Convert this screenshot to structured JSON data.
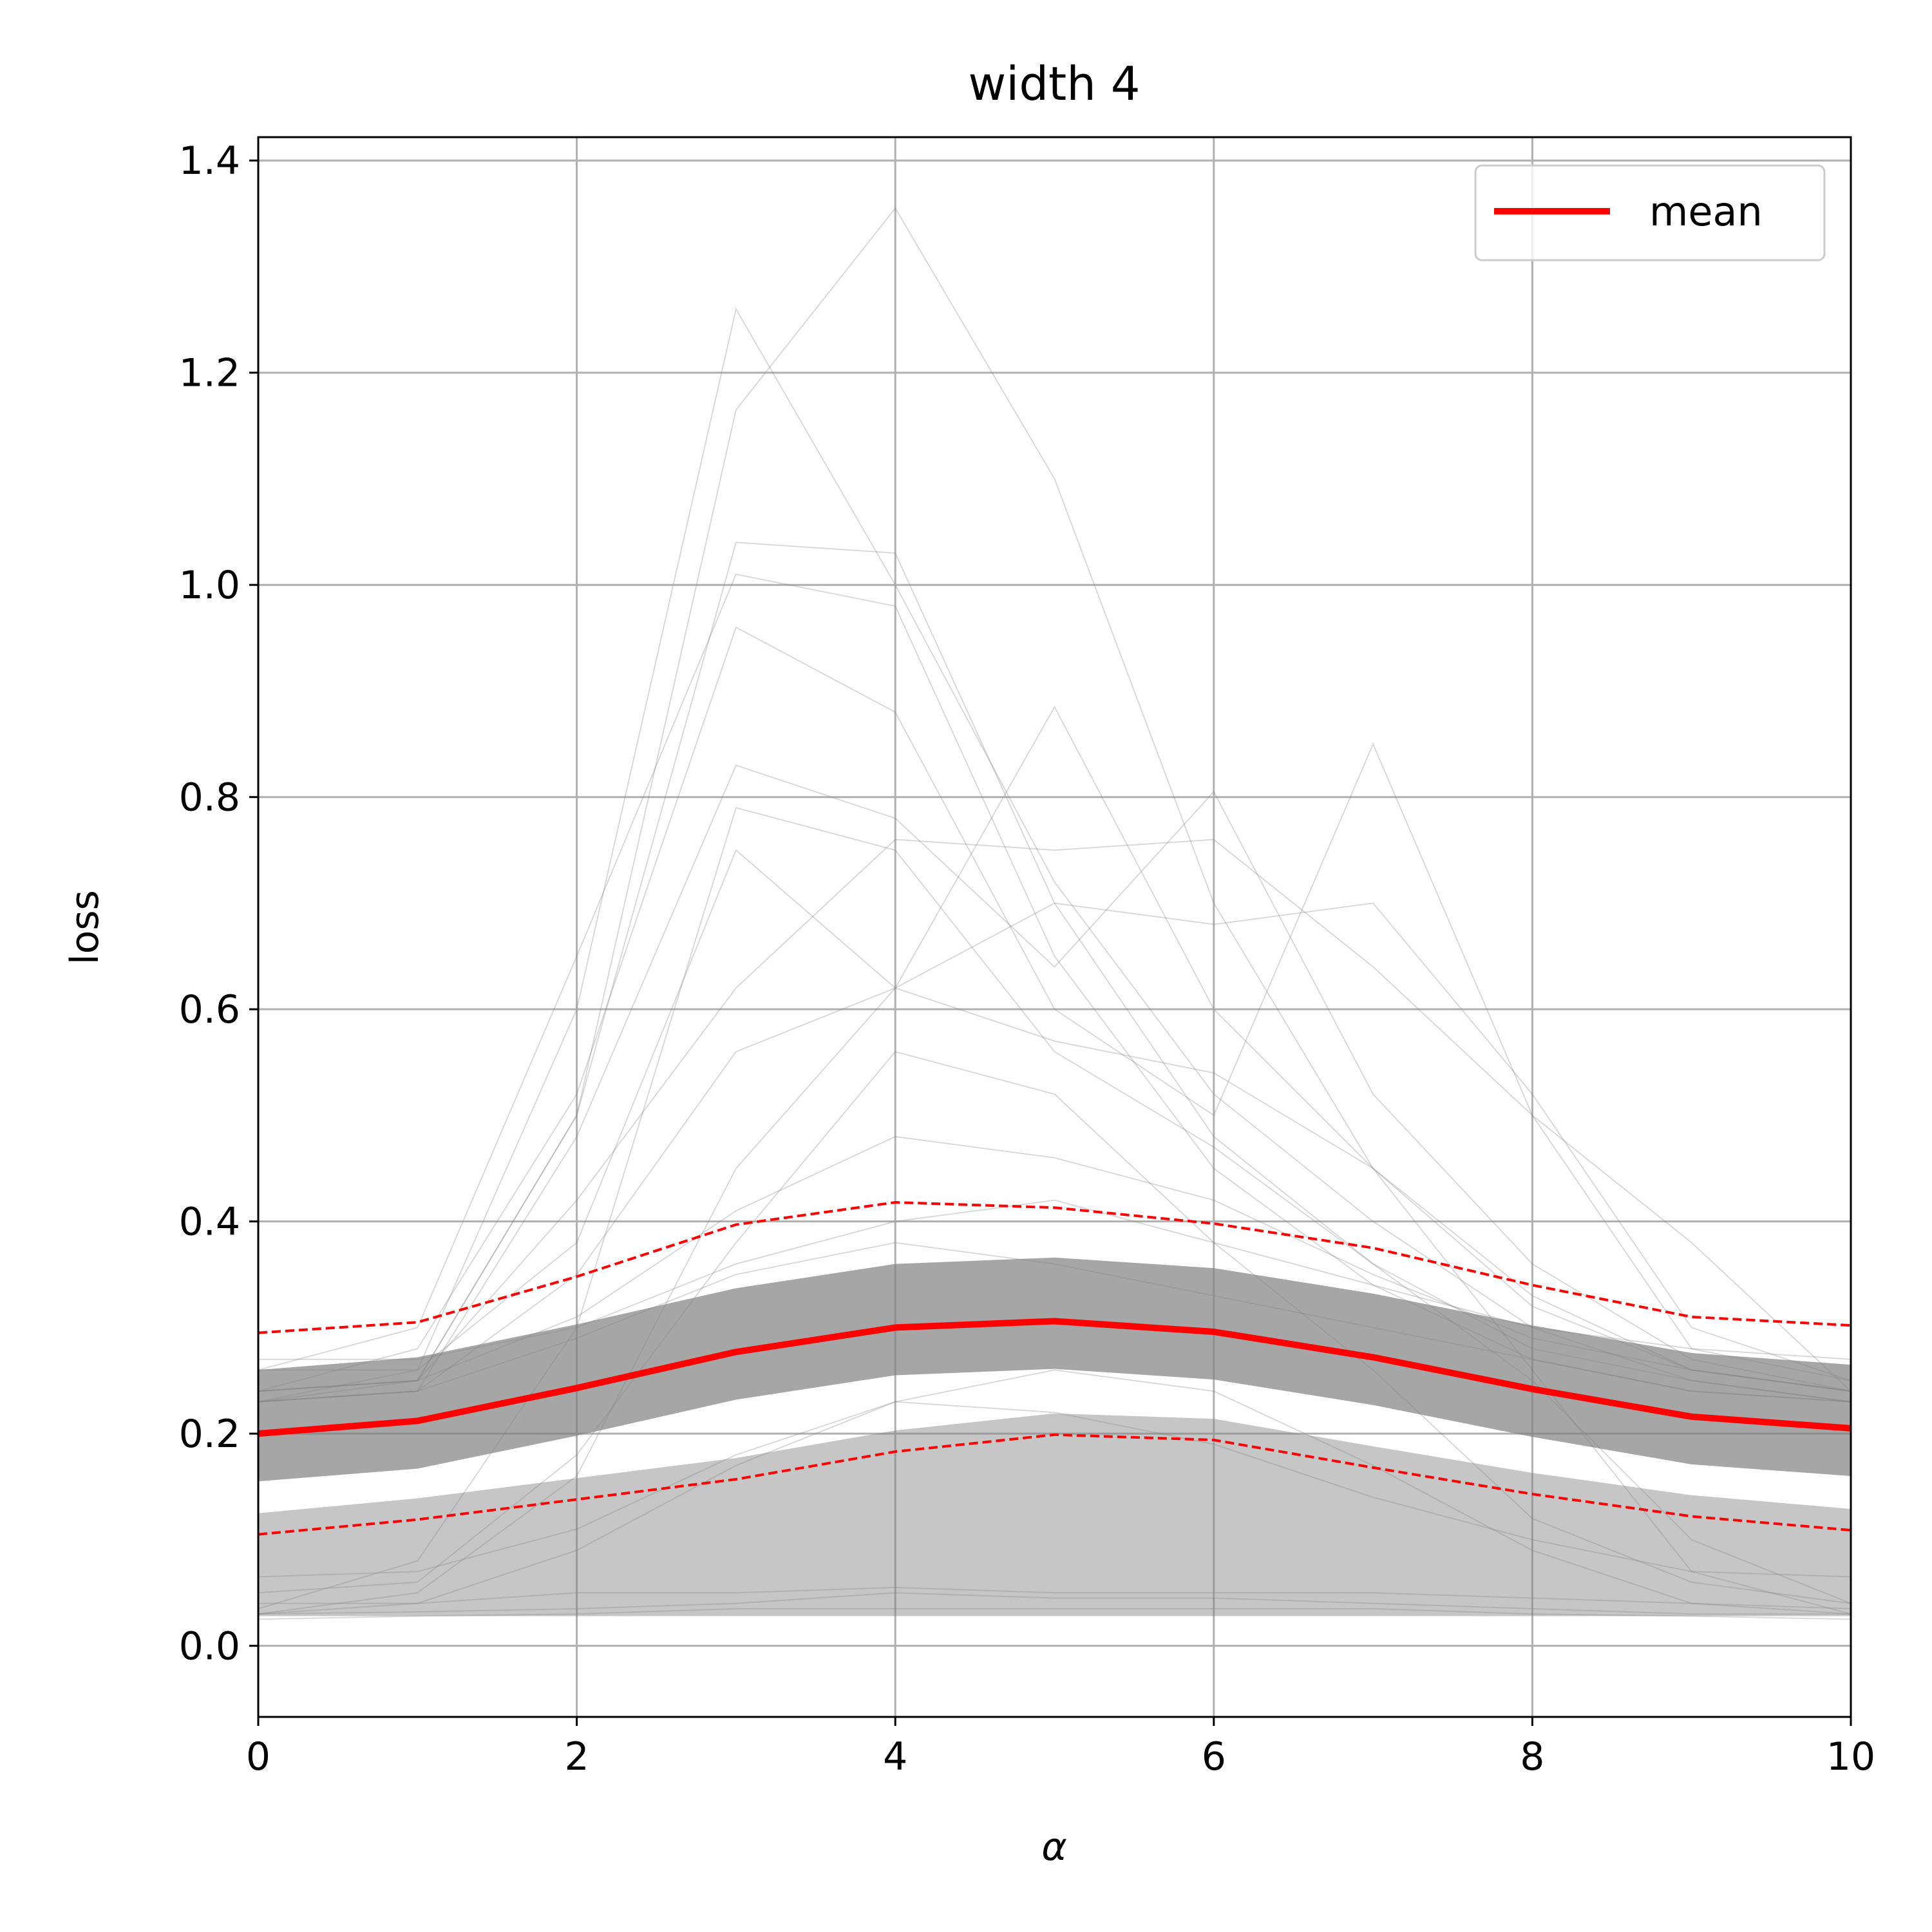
{
  "chart_data": {
    "type": "line",
    "title": "width 4",
    "xlabel": "α",
    "ylabel": "loss",
    "xlim": [
      0,
      10
    ],
    "ylim": [
      -0.067,
      1.422
    ],
    "xticks": [
      0,
      2,
      4,
      6,
      8,
      10
    ],
    "yticks": [
      0.0,
      0.2,
      0.4,
      0.6,
      0.8,
      1.0,
      1.2,
      1.4
    ],
    "xtick_labels": [
      "0",
      "2",
      "4",
      "6",
      "8",
      "10"
    ],
    "ytick_labels": [
      "0.0",
      "0.2",
      "0.4",
      "0.6",
      "0.8",
      "1.0",
      "1.2",
      "1.4"
    ],
    "grid": true,
    "legend": {
      "placement": "top-right",
      "entries": [
        "mean"
      ]
    },
    "x": [
      0,
      1,
      2,
      3,
      4,
      5,
      6,
      7,
      8,
      9,
      10
    ],
    "mean": [
      0.2,
      0.212,
      0.243,
      0.277,
      0.3,
      0.306,
      0.296,
      0.272,
      0.242,
      0.216,
      0.205
    ],
    "upper_band": [
      0.295,
      0.305,
      0.348,
      0.397,
      0.418,
      0.413,
      0.398,
      0.375,
      0.34,
      0.31,
      0.302
    ],
    "lower_band": [
      0.105,
      0.119,
      0.138,
      0.157,
      0.183,
      0.199,
      0.194,
      0.168,
      0.143,
      0.122,
      0.109
    ],
    "individual_runs": [
      [
        0.23,
        0.26,
        0.6,
        1.26,
        1.0,
        0.72,
        0.52,
        0.4,
        0.3,
        0.25,
        0.23
      ],
      [
        0.24,
        0.25,
        0.5,
        1.165,
        1.355,
        1.1,
        0.7,
        0.45,
        0.32,
        0.26,
        0.24
      ],
      [
        0.23,
        0.25,
        0.5,
        1.04,
        1.03,
        0.7,
        0.48,
        0.36,
        0.28,
        0.25,
        0.23
      ],
      [
        0.26,
        0.3,
        0.65,
        1.01,
        0.98,
        0.65,
        0.45,
        0.34,
        0.27,
        0.24,
        0.23
      ],
      [
        0.24,
        0.28,
        0.52,
        0.96,
        0.88,
        0.6,
        0.5,
        0.85,
        0.5,
        0.28,
        0.25
      ],
      [
        0.23,
        0.24,
        0.48,
        0.83,
        0.78,
        0.64,
        0.805,
        0.52,
        0.36,
        0.27,
        0.24
      ],
      [
        0.035,
        0.08,
        0.3,
        0.79,
        0.75,
        0.56,
        0.47,
        0.36,
        0.25,
        0.1,
        0.04
      ],
      [
        0.26,
        0.26,
        0.38,
        0.75,
        0.62,
        0.885,
        0.6,
        0.45,
        0.33,
        0.26,
        0.24
      ],
      [
        0.24,
        0.25,
        0.42,
        0.62,
        0.76,
        0.75,
        0.76,
        0.64,
        0.5,
        0.38,
        0.24
      ],
      [
        0.23,
        0.24,
        0.35,
        0.56,
        0.62,
        0.7,
        0.68,
        0.7,
        0.52,
        0.3,
        0.25
      ],
      [
        0.03,
        0.05,
        0.16,
        0.45,
        0.62,
        0.57,
        0.54,
        0.45,
        0.26,
        0.07,
        0.03
      ],
      [
        0.05,
        0.06,
        0.18,
        0.38,
        0.56,
        0.52,
        0.38,
        0.26,
        0.12,
        0.06,
        0.04
      ],
      [
        0.24,
        0.25,
        0.31,
        0.41,
        0.48,
        0.46,
        0.42,
        0.35,
        0.29,
        0.26,
        0.24
      ],
      [
        0.27,
        0.27,
        0.3,
        0.36,
        0.4,
        0.42,
        0.38,
        0.34,
        0.3,
        0.28,
        0.27
      ],
      [
        0.23,
        0.24,
        0.29,
        0.35,
        0.38,
        0.36,
        0.33,
        0.3,
        0.27,
        0.24,
        0.23
      ],
      [
        0.03,
        0.04,
        0.09,
        0.17,
        0.23,
        0.26,
        0.24,
        0.17,
        0.09,
        0.04,
        0.03
      ],
      [
        0.065,
        0.07,
        0.11,
        0.18,
        0.23,
        0.22,
        0.19,
        0.14,
        0.1,
        0.07,
        0.065
      ],
      [
        0.03,
        0.032,
        0.035,
        0.04,
        0.05,
        0.045,
        0.045,
        0.04,
        0.035,
        0.03,
        0.03
      ],
      [
        0.04,
        0.04,
        0.05,
        0.05,
        0.055,
        0.05,
        0.05,
        0.05,
        0.045,
        0.04,
        0.035
      ],
      [
        0.025,
        0.028,
        0.03,
        0.035,
        0.035,
        0.035,
        0.035,
        0.035,
        0.03,
        0.028,
        0.025
      ]
    ]
  }
}
